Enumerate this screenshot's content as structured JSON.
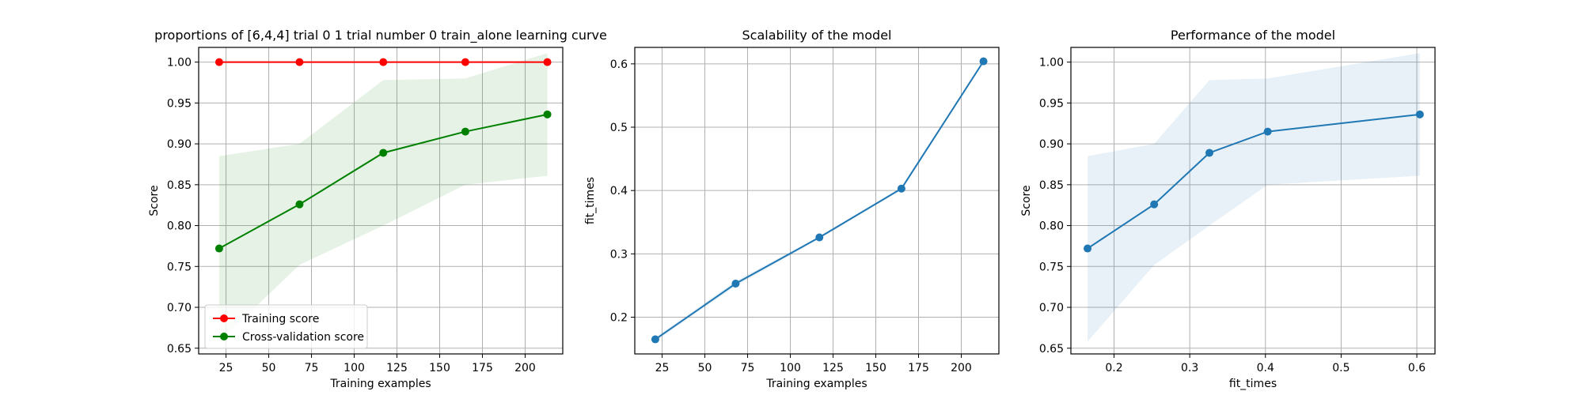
{
  "chart_data": [
    {
      "type": "line",
      "title": "proportions of [6,4,4] trial 0 1 trial number 0 train_alone learning curve",
      "xlabel": "Training examples",
      "ylabel": "Score",
      "xlim": [
        9,
        222
      ],
      "ylim": [
        0.643,
        1.018
      ],
      "xticks": [
        25,
        50,
        75,
        100,
        125,
        150,
        175,
        200
      ],
      "yticks": [
        0.65,
        0.7,
        0.75,
        0.8,
        0.85,
        0.9,
        0.95,
        1.0
      ],
      "grid": true,
      "legend": "lower-left",
      "x": [
        21,
        68,
        117,
        165,
        213
      ],
      "series": [
        {
          "name": "Training score",
          "color": "#ff0000",
          "values": [
            1.0,
            1.0,
            1.0,
            1.0,
            1.0
          ],
          "band_lower": [
            1.0,
            1.0,
            1.0,
            1.0,
            1.0
          ],
          "band_upper": [
            1.0,
            1.0,
            1.0,
            1.0,
            1.0
          ]
        },
        {
          "name": "Cross-validation score",
          "color": "#008000",
          "values": [
            0.772,
            0.826,
            0.889,
            0.915,
            0.936
          ],
          "band_lower": [
            0.658,
            0.752,
            0.8,
            0.85,
            0.861
          ],
          "band_upper": [
            0.885,
            0.9,
            0.978,
            0.98,
            1.011
          ]
        }
      ]
    },
    {
      "type": "line",
      "title": "Scalability of the model",
      "xlabel": "Training examples",
      "ylabel": "fit_times",
      "xlim": [
        9,
        222
      ],
      "ylim": [
        0.142,
        0.626
      ],
      "xticks": [
        25,
        50,
        75,
        100,
        125,
        150,
        175,
        200
      ],
      "yticks": [
        0.2,
        0.3,
        0.4,
        0.5,
        0.6
      ],
      "grid": true,
      "x": [
        21,
        68,
        117,
        165,
        213
      ],
      "series": [
        {
          "color": "#1f77b4",
          "values": [
            0.165,
            0.253,
            0.326,
            0.403,
            0.604
          ],
          "band_lower": [
            0.162,
            0.249,
            0.324,
            0.401,
            0.602
          ],
          "band_upper": [
            0.168,
            0.257,
            0.328,
            0.405,
            0.606
          ]
        }
      ]
    },
    {
      "type": "line",
      "title": "Performance of the model",
      "xlabel": "fit_times",
      "ylabel": "Score",
      "xlim": [
        0.143,
        0.624
      ],
      "ylim": [
        0.643,
        1.018
      ],
      "xticks": [
        0.2,
        0.3,
        0.4,
        0.5,
        0.6
      ],
      "yticks": [
        0.65,
        0.7,
        0.75,
        0.8,
        0.85,
        0.9,
        0.95,
        1.0
      ],
      "grid": true,
      "x": [
        0.165,
        0.253,
        0.326,
        0.403,
        0.604
      ],
      "series": [
        {
          "color": "#1f77b4",
          "values": [
            0.772,
            0.826,
            0.889,
            0.915,
            0.936
          ],
          "band_lower": [
            0.658,
            0.752,
            0.8,
            0.85,
            0.861
          ],
          "band_upper": [
            0.885,
            0.9,
            0.978,
            0.98,
            1.011
          ]
        }
      ]
    }
  ]
}
